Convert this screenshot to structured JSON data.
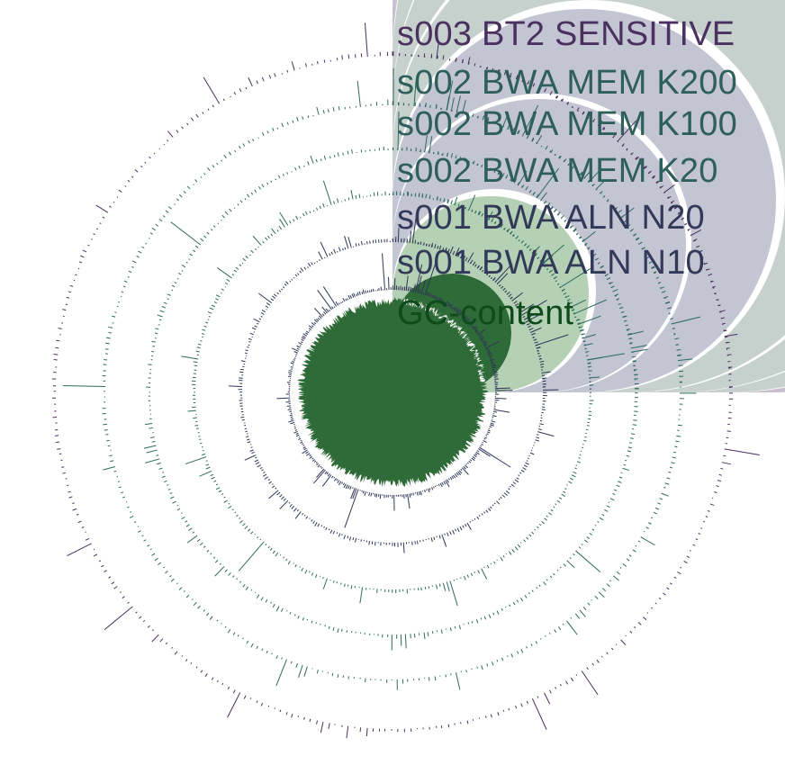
{
  "figure": {
    "tracks": [
      {
        "key": "gc",
        "label": "GC-content",
        "band_color": "#b5d1b5",
        "signal_color": "#2f6b38",
        "label_color": "#0f4a1c"
      },
      {
        "key": "s001_n10",
        "label": "s001 BWA ALN N10",
        "band_color": "#c3c5d3",
        "signal_color": "#2f3556",
        "label_color": "#333a59"
      },
      {
        "key": "s001_n20",
        "label": "s001 BWA ALN N20",
        "band_color": "#c3c5d3",
        "signal_color": "#2f3556",
        "label_color": "#333a59"
      },
      {
        "key": "s002_k20",
        "label": "s002 BWA MEM K20",
        "band_color": "#c6d1cd",
        "signal_color": "#2f6a5e",
        "label_color": "#2f5f5b"
      },
      {
        "key": "s002_k100",
        "label": "s002 BWA MEM K100",
        "band_color": "#c6d1cd",
        "signal_color": "#2f6a5e",
        "label_color": "#2f5f5b"
      },
      {
        "key": "s002_k200",
        "label": "s002 BWA MEM K200",
        "band_color": "#c6d1cd",
        "signal_color": "#2f6a5e",
        "label_color": "#2f5f5b"
      },
      {
        "key": "s003_bt2",
        "label": "s003 BT2 SENSITIVE",
        "band_color": "#c9c0cf",
        "signal_color": "#4b2f5e",
        "label_color": "#4b3160"
      }
    ]
  }
}
